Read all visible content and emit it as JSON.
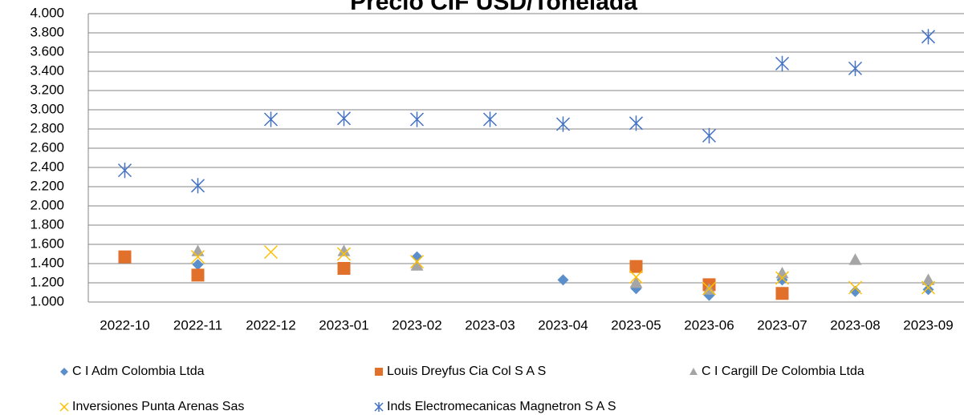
{
  "chart_data": {
    "type": "scatter",
    "title": "Precio CIF USD/Tonelada",
    "categories": [
      "2022-10",
      "2022-11",
      "2022-12",
      "2023-01",
      "2023-02",
      "2023-03",
      "2023-04",
      "2023-05",
      "2023-06",
      "2023-07",
      "2023-08",
      "2023-09"
    ],
    "series": [
      {
        "name": "C I Adm Colombia Ltda",
        "color": "#5b8fcc",
        "marker": "diamond",
        "values": [
          null,
          1390,
          null,
          null,
          1470,
          null,
          1230,
          1140,
          1070,
          1230,
          1110,
          1130
        ]
      },
      {
        "name": "Louis Dreyfus Cia Col S A S",
        "color": "#e0702a",
        "marker": "square",
        "values": [
          1470,
          1280,
          null,
          1350,
          null,
          null,
          null,
          1370,
          1180,
          1090,
          null,
          null
        ]
      },
      {
        "name": "C I Cargill De Colombia Ltda",
        "color": "#a5a5a5",
        "marker": "triangle",
        "values": [
          null,
          1530,
          null,
          1530,
          1380,
          null,
          null,
          1200,
          1130,
          1300,
          1440,
          1230
        ]
      },
      {
        "name": "Inversiones Punta Arenas Sas",
        "color": "#ffc000",
        "marker": "x",
        "values": [
          null,
          1470,
          1520,
          1500,
          1420,
          null,
          null,
          1260,
          1140,
          1250,
          1150,
          1150
        ]
      },
      {
        "name": "Inds Electromecanicas Magnetron S A S",
        "color": "#4472c4",
        "marker": "asterisk",
        "values": [
          2370,
          2210,
          2900,
          2910,
          2900,
          2900,
          2850,
          2860,
          2730,
          3480,
          3430,
          3760
        ]
      }
    ],
    "ylim": [
      1000,
      4000
    ],
    "yticks": [
      {
        "value": 1000,
        "label": "1.000"
      },
      {
        "value": 1200,
        "label": "1.200"
      },
      {
        "value": 1400,
        "label": "1.400"
      },
      {
        "value": 1600,
        "label": "1.600"
      },
      {
        "value": 1800,
        "label": "1.800"
      },
      {
        "value": 2000,
        "label": "2.000"
      },
      {
        "value": 2200,
        "label": "2.200"
      },
      {
        "value": 2400,
        "label": "2.400"
      },
      {
        "value": 2600,
        "label": "2.600"
      },
      {
        "value": 2800,
        "label": "2.800"
      },
      {
        "value": 3000,
        "label": "3.000"
      },
      {
        "value": 3200,
        "label": "3.200"
      },
      {
        "value": 3400,
        "label": "3.400"
      },
      {
        "value": 3600,
        "label": "3.600"
      },
      {
        "value": 3800,
        "label": "3.800"
      },
      {
        "value": 4000,
        "label": "4.000"
      }
    ],
    "grid": true,
    "legend": "bottom"
  }
}
